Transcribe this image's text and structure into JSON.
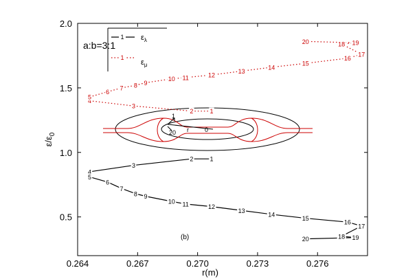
{
  "chart_data": {
    "type": "line",
    "xlabel": "r(m)",
    "ylabel": "ε/ε₀",
    "xlim": [
      0.264,
      0.2785
    ],
    "ylim": [
      0.2,
      2.0
    ],
    "xticks": [
      "0.264",
      "0.267",
      "0.270",
      "0.273",
      "0.276"
    ],
    "xtick_values": [
      0.264,
      0.267,
      0.27,
      0.273,
      0.276
    ],
    "yticks": [
      "0.5",
      "1.0",
      "1.5",
      "2.0"
    ],
    "ytick_values": [
      0.5,
      1.0,
      1.5,
      2.0
    ],
    "annotation": "a:b=3:1",
    "panel_label": "(b)",
    "legend": {
      "position": "top-left",
      "entries": [
        {
          "marker": "1",
          "label": "ε",
          "sub": "λ",
          "color": "#000000",
          "style": "solid"
        },
        {
          "marker": "1",
          "label": "ε",
          "sub": "μ",
          "color": "#cc0000",
          "style": "dotted"
        }
      ]
    },
    "series": [
      {
        "name": "ε_λ (upper branch)",
        "color": "#000000",
        "style": "solid",
        "points": [
          {
            "x": 0.2646,
            "y": 0.85,
            "label": "4"
          },
          {
            "x": 0.2668,
            "y": 0.9,
            "label": "3"
          },
          {
            "x": 0.2697,
            "y": 0.95,
            "label": "2"
          },
          {
            "x": 0.2707,
            "y": 0.95,
            "label": "1"
          }
        ]
      },
      {
        "name": "ε_λ (lower branch)",
        "color": "#000000",
        "style": "solid",
        "points": [
          {
            "x": 0.2646,
            "y": 0.81,
            "label": "5"
          },
          {
            "x": 0.2655,
            "y": 0.77,
            "label": "6"
          },
          {
            "x": 0.2662,
            "y": 0.72,
            "label": "7"
          },
          {
            "x": 0.2669,
            "y": 0.68,
            "label": "8"
          },
          {
            "x": 0.2674,
            "y": 0.66,
            "label": "9"
          },
          {
            "x": 0.2687,
            "y": 0.62,
            "label": "10"
          },
          {
            "x": 0.2694,
            "y": 0.6,
            "label": "11"
          },
          {
            "x": 0.2707,
            "y": 0.58,
            "label": "12"
          },
          {
            "x": 0.2722,
            "y": 0.55,
            "label": "13"
          },
          {
            "x": 0.2737,
            "y": 0.52,
            "label": "14"
          },
          {
            "x": 0.2754,
            "y": 0.49,
            "label": "15"
          },
          {
            "x": 0.2775,
            "y": 0.46,
            "label": "16"
          },
          {
            "x": 0.2782,
            "y": 0.43,
            "label": "17"
          },
          {
            "x": 0.2772,
            "y": 0.35,
            "label": "18"
          },
          {
            "x": 0.2779,
            "y": 0.34,
            "label": "19"
          },
          {
            "x": 0.2754,
            "y": 0.33,
            "label": "20"
          }
        ]
      },
      {
        "name": "ε_μ (lower branch)",
        "color": "#cc0000",
        "style": "dotted",
        "points": [
          {
            "x": 0.2646,
            "y": 1.4,
            "label": "4"
          },
          {
            "x": 0.2668,
            "y": 1.36,
            "label": "3"
          },
          {
            "x": 0.2697,
            "y": 1.32,
            "label": "2"
          },
          {
            "x": 0.2707,
            "y": 1.32,
            "label": "1"
          }
        ]
      },
      {
        "name": "ε_μ (upper branch)",
        "color": "#cc0000",
        "style": "dotted",
        "points": [
          {
            "x": 0.2646,
            "y": 1.43,
            "label": "5"
          },
          {
            "x": 0.2655,
            "y": 1.47,
            "label": "6"
          },
          {
            "x": 0.2662,
            "y": 1.5,
            "label": "7"
          },
          {
            "x": 0.2669,
            "y": 1.52,
            "label": "8"
          },
          {
            "x": 0.2674,
            "y": 1.54,
            "label": "9"
          },
          {
            "x": 0.2687,
            "y": 1.57,
            "label": "10"
          },
          {
            "x": 0.2694,
            "y": 1.58,
            "label": "11"
          },
          {
            "x": 0.2707,
            "y": 1.6,
            "label": "12"
          },
          {
            "x": 0.2722,
            "y": 1.63,
            "label": "13"
          },
          {
            "x": 0.2737,
            "y": 1.66,
            "label": "14"
          },
          {
            "x": 0.2754,
            "y": 1.69,
            "label": "15"
          },
          {
            "x": 0.2775,
            "y": 1.73,
            "label": "16"
          },
          {
            "x": 0.2782,
            "y": 1.76,
            "label": "17"
          },
          {
            "x": 0.2772,
            "y": 1.84,
            "label": "18"
          },
          {
            "x": 0.2779,
            "y": 1.85,
            "label": "19"
          },
          {
            "x": 0.2754,
            "y": 1.86,
            "label": "20"
          }
        ]
      }
    ],
    "inset": {
      "description_labels": [
        "1",
        "20",
        "r",
        "0"
      ]
    }
  }
}
